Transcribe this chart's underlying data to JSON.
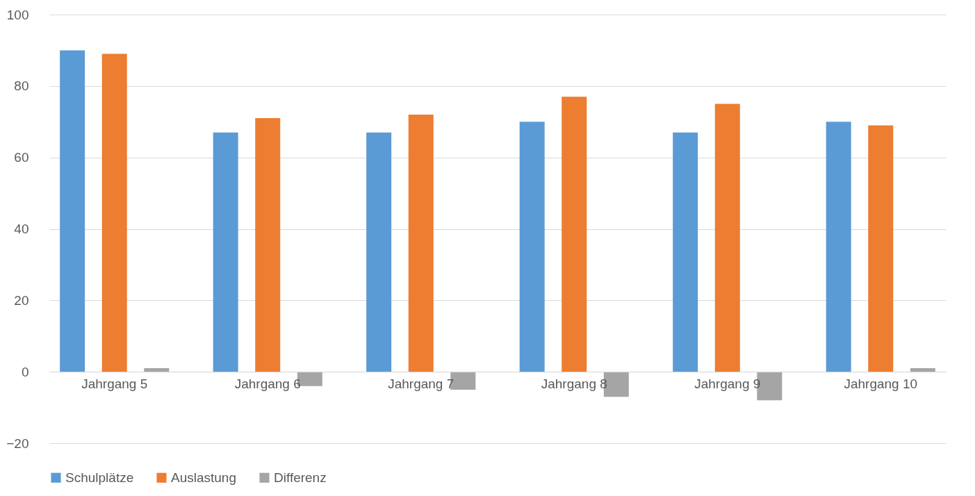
{
  "chart_data": {
    "type": "bar",
    "categories": [
      "Jahrgang 5",
      "Jahrgang 6",
      "Jahrgang 7",
      "Jahrgang 8",
      "Jahrgang 9",
      "Jahrgang 10"
    ],
    "series": [
      {
        "name": "Schulplätze",
        "color": "#5b9bd5",
        "values": [
          90,
          67,
          67,
          70,
          67,
          70
        ]
      },
      {
        "name": "Auslastung",
        "color": "#ed7d31",
        "values": [
          89,
          71,
          72,
          77,
          75,
          69
        ]
      },
      {
        "name": "Differenz",
        "color": "#a5a5a5",
        "values": [
          1,
          -4,
          -5,
          -7,
          -8,
          1
        ]
      }
    ],
    "ylim": [
      -20,
      100
    ],
    "yticks": [
      -20,
      0,
      20,
      40,
      60,
      80,
      100
    ],
    "grid": "y",
    "legend": "bottom"
  }
}
